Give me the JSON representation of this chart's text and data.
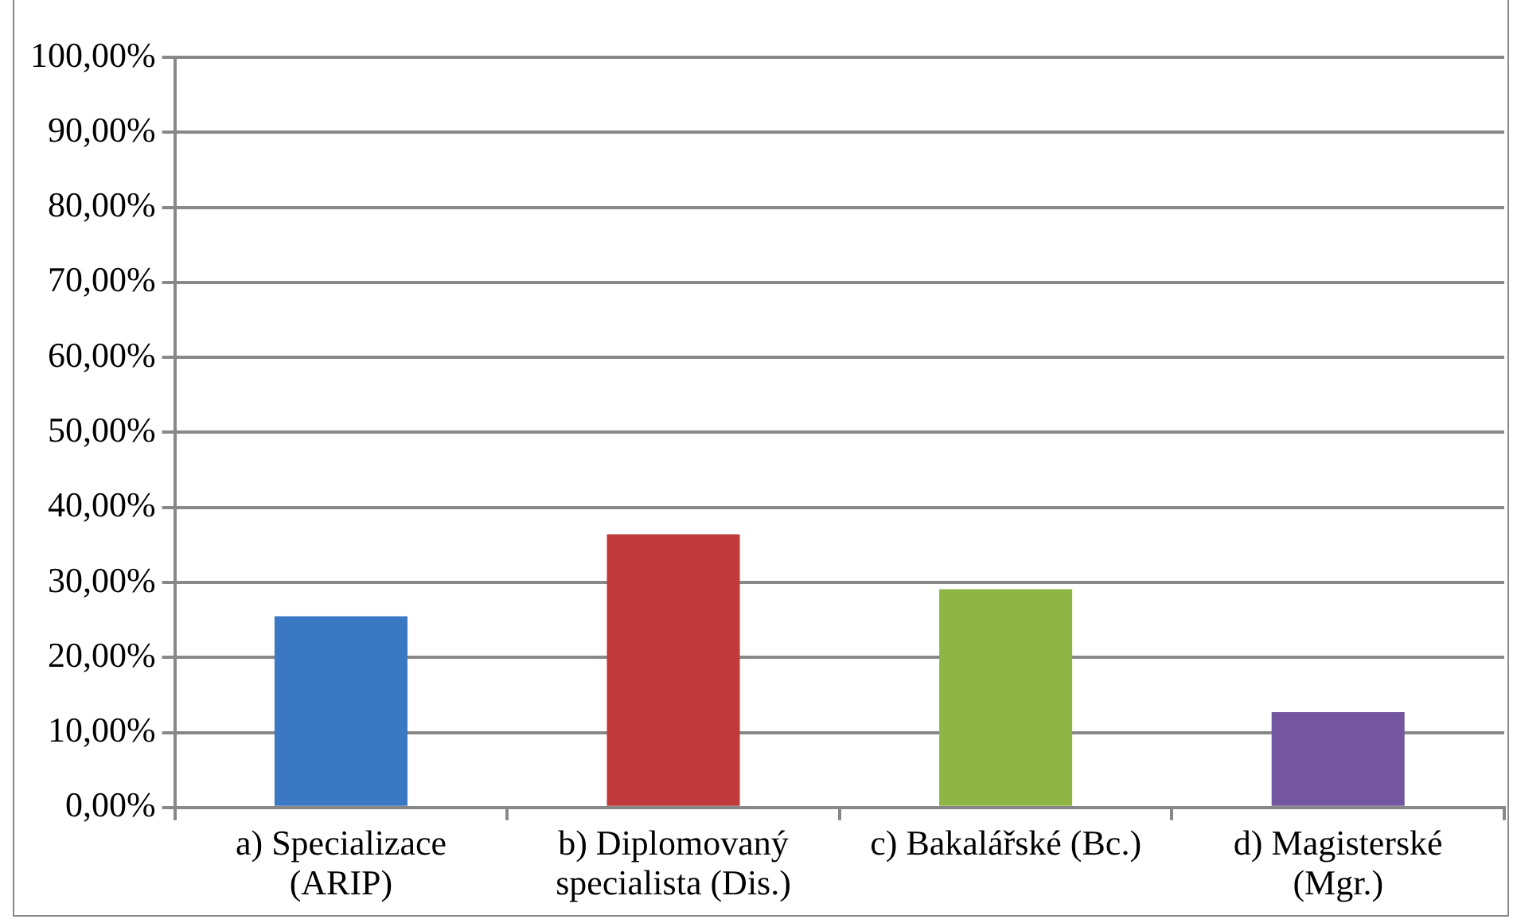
{
  "chart_data": {
    "type": "bar",
    "categories": [
      "a) Specializace (ARIP)",
      "b) Diplomovaný specialista (Dis.)",
      "c) Bakalářské (Bc.)",
      "d) Magisterské (Mgr.)"
    ],
    "values": [
      25.5,
      36.4,
      29.1,
      12.7
    ],
    "colors": [
      "#3a78c3",
      "#c0393b",
      "#8fb545",
      "#7456a0"
    ],
    "ylim": [
      0,
      100
    ],
    "yticks": [
      {
        "value": 0,
        "label": "0,00%"
      },
      {
        "value": 10,
        "label": "10,00%"
      },
      {
        "value": 20,
        "label": "20,00%"
      },
      {
        "value": 30,
        "label": "30,00%"
      },
      {
        "value": 40,
        "label": "40,00%"
      },
      {
        "value": 50,
        "label": "50,00%"
      },
      {
        "value": 60,
        "label": "60,00%"
      },
      {
        "value": 70,
        "label": "70,00%"
      },
      {
        "value": 80,
        "label": "80,00%"
      },
      {
        "value": 90,
        "label": "90,00%"
      },
      {
        "value": 100,
        "label": "100,00%"
      }
    ],
    "grid": "y",
    "legend": false
  }
}
